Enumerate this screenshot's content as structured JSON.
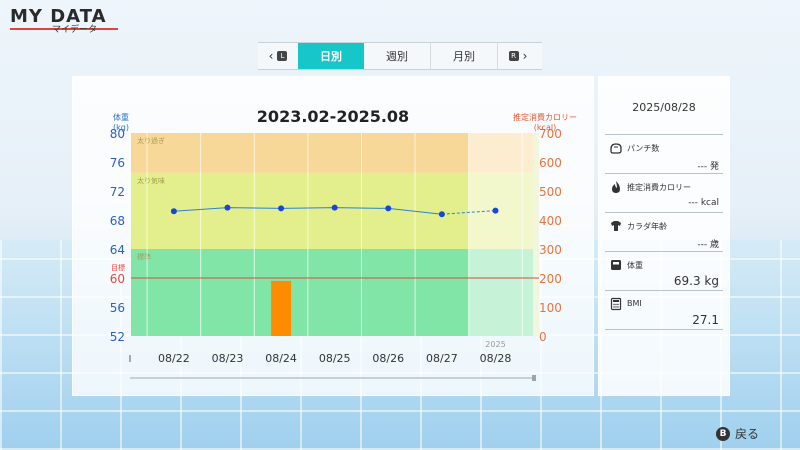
{
  "app": {
    "title": "MY DATA",
    "subtitle": "マイデータ"
  },
  "tabs": {
    "left_badge": "L",
    "right_badge": "R",
    "items": [
      {
        "label": "日別",
        "active": true
      },
      {
        "label": "週別",
        "active": false
      },
      {
        "label": "月別",
        "active": false
      }
    ]
  },
  "chart_data": {
    "type": "line",
    "title": "2023.02-2025.08",
    "left_axis": {
      "label": "体重",
      "unit": "(kg)",
      "ticks": [
        80,
        76,
        72,
        68,
        64,
        60,
        56,
        52
      ],
      "range": [
        52,
        80
      ]
    },
    "right_axis": {
      "label": "推定消費カロリー",
      "unit": "(kcal)",
      "ticks": [
        700,
        600,
        500,
        400,
        300,
        200,
        100,
        0
      ],
      "range": [
        0,
        700
      ]
    },
    "year_label": "2025",
    "x_start_marker": "I",
    "categories": [
      "08/22",
      "08/23",
      "08/24",
      "08/25",
      "08/26",
      "08/27",
      "08/28"
    ],
    "series": [
      {
        "axis": "left",
        "values": [
          69.2,
          69.7,
          69.6,
          69.7,
          69.6,
          68.8,
          69.3
        ]
      },
      {
        "axis": "right",
        "values": [
          0,
          0,
          190,
          0,
          0,
          0,
          0
        ]
      }
    ],
    "zones": [
      {
        "label": "太り過ぎ",
        "from": 74.5,
        "to": 80,
        "color": "#f8d898"
      },
      {
        "label": "太り気味",
        "from": 64,
        "to": 74.5,
        "color": "#e3ef8c"
      },
      {
        "label": "標準",
        "from": 52,
        "to": 64,
        "color": "#80e5a6"
      }
    ],
    "target": {
      "label": "目標",
      "value": 60
    },
    "colors": {
      "line": "#2f7fd6",
      "point": "#1746d9",
      "bar": "#ff8c00",
      "target": "#e04a3a"
    }
  },
  "side": {
    "date": "2025/08/28",
    "items": [
      {
        "icon": "glove-icon",
        "label": "パンチ数",
        "value": "--- 発"
      },
      {
        "icon": "flame-icon",
        "label": "推定消費カロリー",
        "value": "--- kcal"
      },
      {
        "icon": "muscle-icon",
        "label": "カラダ年齢",
        "value": "--- 歳"
      },
      {
        "icon": "scale-icon",
        "label": "体重",
        "value": "69.3 kg"
      },
      {
        "icon": "calculator-icon",
        "label": "BMI",
        "value": "27.1"
      }
    ]
  },
  "footer": {
    "button": "B",
    "back_label": "戻る"
  }
}
